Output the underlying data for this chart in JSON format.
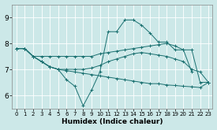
{
  "xlabel": "Humidex (Indice chaleur)",
  "bg_color": "#cce8e8",
  "line_color": "#1a7070",
  "grid_color": "#ffffff",
  "xlim": [
    -0.5,
    23.5
  ],
  "ylim": [
    5.5,
    9.5
  ],
  "xticks": [
    0,
    1,
    2,
    3,
    4,
    5,
    6,
    7,
    8,
    9,
    10,
    11,
    12,
    13,
    14,
    15,
    16,
    17,
    18,
    19,
    20,
    21,
    22,
    23
  ],
  "yticks": [
    6,
    7,
    8,
    9
  ],
  "curves": [
    {
      "x": [
        0,
        1,
        2,
        3,
        4,
        5,
        6,
        7,
        8,
        9,
        10,
        11,
        12,
        13,
        14,
        15,
        16,
        17,
        18,
        19,
        20,
        21
      ],
      "y": [
        7.8,
        7.8,
        7.5,
        7.3,
        7.1,
        7.0,
        6.6,
        6.35,
        5.6,
        6.2,
        6.9,
        8.45,
        8.45,
        8.9,
        8.9,
        8.7,
        8.4,
        8.05,
        8.05,
        7.75,
        7.75,
        6.9
      ]
    },
    {
      "x": [
        0,
        1,
        2,
        3,
        4,
        5,
        6,
        7,
        8,
        9,
        10,
        11,
        12,
        13,
        14,
        15,
        16,
        17,
        18,
        19,
        20,
        21,
        22,
        23
      ],
      "y": [
        7.8,
        7.8,
        7.5,
        7.5,
        7.5,
        7.5,
        7.5,
        7.5,
        7.5,
        7.5,
        7.6,
        7.65,
        7.7,
        7.75,
        7.8,
        7.85,
        7.9,
        7.95,
        8.0,
        7.9,
        7.75,
        7.75,
        6.5,
        6.5
      ]
    },
    {
      "x": [
        0,
        1,
        2,
        3,
        4,
        5,
        6,
        7,
        8,
        9,
        10,
        11,
        12,
        13,
        14,
        15,
        16,
        17,
        18,
        19,
        20,
        21,
        22,
        23
      ],
      "y": [
        7.8,
        7.8,
        7.5,
        7.3,
        7.1,
        7.0,
        6.95,
        6.9,
        6.85,
        6.8,
        6.75,
        6.7,
        6.65,
        6.6,
        6.55,
        6.5,
        6.45,
        6.45,
        6.4,
        6.38,
        6.35,
        6.33,
        6.3,
        6.5
      ]
    },
    {
      "x": [
        0,
        1,
        2,
        3,
        4,
        5,
        6,
        7,
        8,
        9,
        10,
        11,
        12,
        13,
        14,
        15,
        16,
        17,
        18,
        19,
        20,
        21,
        22,
        23
      ],
      "y": [
        7.8,
        7.8,
        7.5,
        7.3,
        7.1,
        7.0,
        7.0,
        7.0,
        7.0,
        7.05,
        7.15,
        7.3,
        7.4,
        7.5,
        7.6,
        7.65,
        7.6,
        7.55,
        7.5,
        7.4,
        7.3,
        7.0,
        6.9,
        6.5
      ]
    }
  ]
}
